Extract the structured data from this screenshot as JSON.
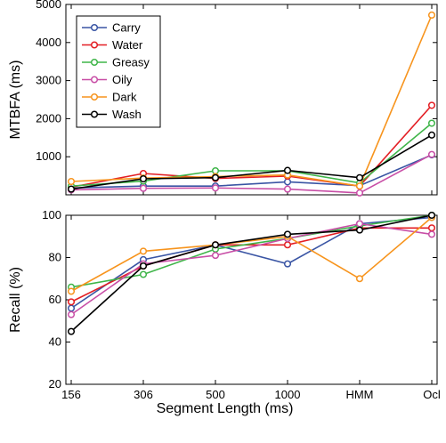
{
  "chart_data": [
    {
      "type": "line",
      "ylabel": "MTBFA (ms)",
      "ylim": [
        0,
        5000
      ],
      "yticks": [
        1000,
        2000,
        3000,
        4000,
        5000
      ],
      "categories": [
        "156",
        "306",
        "500",
        "1000",
        "HMM",
        "Ocl"
      ],
      "show_x_tick_labels": false,
      "legend": {
        "position": "top-left",
        "entries": [
          "Carry",
          "Water",
          "Greasy",
          "Oily",
          "Dark",
          "Wash"
        ]
      },
      "series": [
        {
          "name": "Carry",
          "color": "#3a55a4",
          "values": [
            180,
            230,
            230,
            340,
            240,
            1050
          ]
        },
        {
          "name": "Water",
          "color": "#e31e24",
          "values": [
            200,
            560,
            430,
            490,
            230,
            2350
          ]
        },
        {
          "name": "Greasy",
          "color": "#3fb549",
          "values": [
            230,
            360,
            630,
            630,
            310,
            1880
          ]
        },
        {
          "name": "Oily",
          "color": "#c84ea6",
          "values": [
            130,
            170,
            180,
            150,
            50,
            1060
          ]
        },
        {
          "name": "Dark",
          "color": "#f7941d",
          "values": [
            350,
            440,
            480,
            520,
            230,
            4720
          ]
        },
        {
          "name": "Wash",
          "color": "#000000",
          "values": [
            150,
            420,
            450,
            640,
            450,
            1570
          ]
        }
      ]
    },
    {
      "type": "line",
      "ylabel": "Recall (%)",
      "xlabel": "Segment Length (ms)",
      "ylim": [
        20,
        100
      ],
      "yticks": [
        20,
        40,
        60,
        80,
        100
      ],
      "categories": [
        "156",
        "306",
        "500",
        "1000",
        "HMM",
        "Ocl"
      ],
      "show_x_tick_labels": true,
      "series": [
        {
          "name": "Carry",
          "color": "#3a55a4",
          "values": [
            56,
            79,
            86,
            77,
            96,
            99
          ]
        },
        {
          "name": "Water",
          "color": "#e31e24",
          "values": [
            59,
            76,
            86,
            86,
            94,
            94
          ]
        },
        {
          "name": "Greasy",
          "color": "#3fb549",
          "values": [
            66,
            72,
            84,
            89,
            95,
            100
          ]
        },
        {
          "name": "Oily",
          "color": "#c84ea6",
          "values": [
            53,
            77,
            81,
            89,
            96,
            91
          ]
        },
        {
          "name": "Dark",
          "color": "#f7941d",
          "values": [
            64,
            83,
            86,
            90,
            70,
            99
          ]
        },
        {
          "name": "Wash",
          "color": "#000000",
          "values": [
            45,
            76,
            86,
            91,
            93,
            100
          ]
        }
      ]
    }
  ]
}
